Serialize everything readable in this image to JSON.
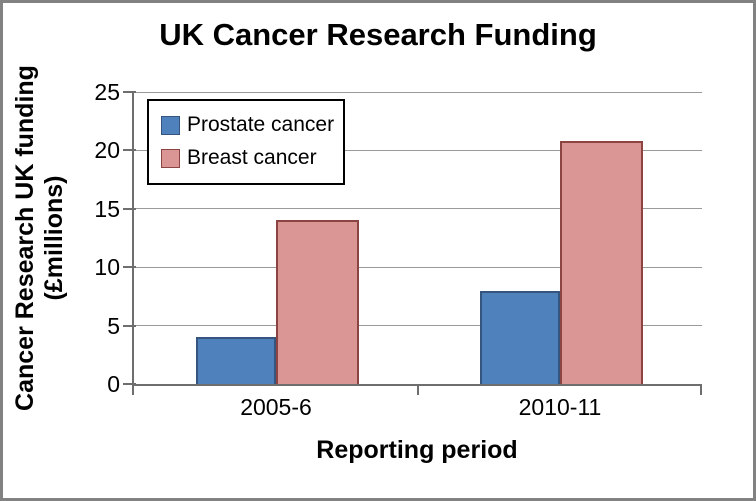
{
  "frame": {
    "background": "#FFFFFF",
    "border_color": "#828282"
  },
  "chart_data": {
    "type": "bar",
    "title": "UK Cancer Research Funding",
    "categories": [
      "2005-6",
      "2010-11"
    ],
    "series": [
      {
        "name": "Prostate cancer",
        "values": [
          4,
          8
        ],
        "fill": "#4F81BD",
        "border": "#35547E"
      },
      {
        "name": "Breast cancer",
        "values": [
          14,
          20.8
        ],
        "fill": "#D99694",
        "border": "#8C4442"
      }
    ],
    "xlabel": "Reporting period",
    "ylabel": "Cancer Research UK funding (£millions)",
    "ylabel_lines": [
      "Cancer Research UK funding",
      "(£millions)"
    ],
    "ylim": [
      0,
      25
    ],
    "yticks": [
      0,
      5,
      10,
      15,
      20,
      25
    ],
    "grid": true,
    "legend_position": "top-left-inside",
    "axis_color": "#6E6E6E",
    "gridline_color": "#9A9A9A"
  }
}
